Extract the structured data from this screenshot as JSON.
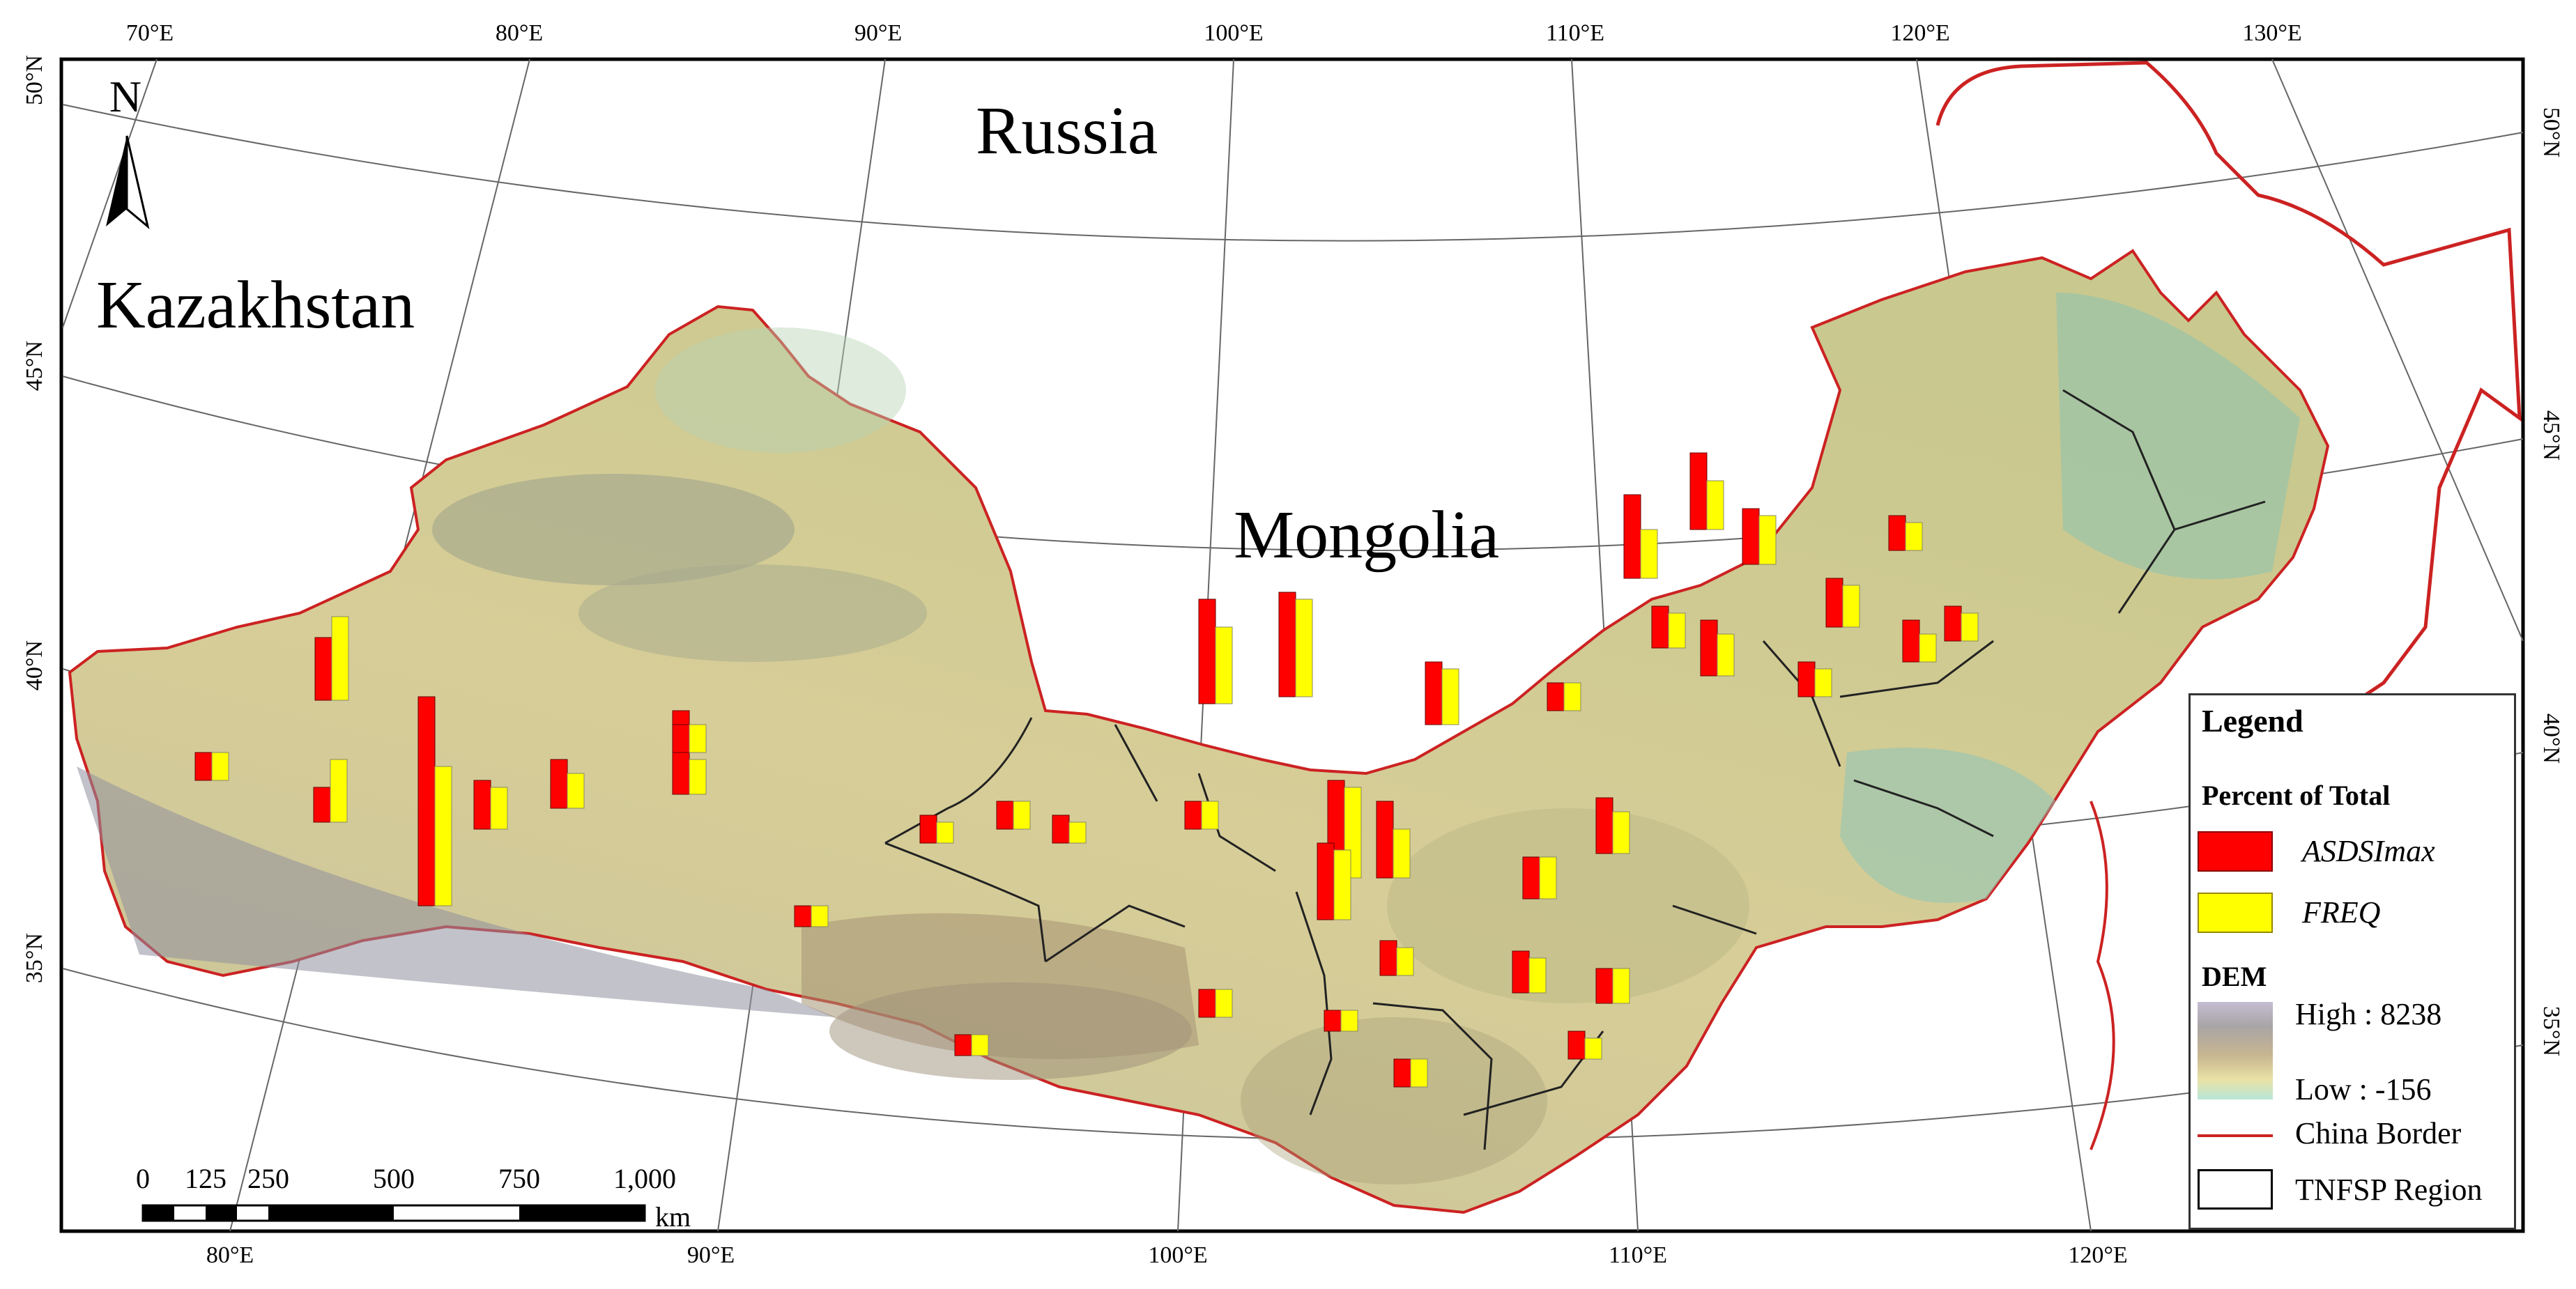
{
  "map": {
    "countries": {
      "russia": "Russia",
      "kazakhstan": "Kazakhstan",
      "mongolia": "Mongolia"
    },
    "north_arrow": "N",
    "top_ticks": [
      "70°E",
      "80°E",
      "90°E",
      "100°E",
      "110°E",
      "120°E",
      "130°E"
    ],
    "bottom_ticks": [
      "80°E",
      "90°E",
      "100°E",
      "110°E",
      "120°E"
    ],
    "left_ticks": [
      "50°N",
      "45°N",
      "40°N",
      "35°N"
    ],
    "right_ticks": [
      "50°N",
      "45°N",
      "40°N",
      "35°N"
    ],
    "scale_bar": {
      "labels": [
        "0",
        "125",
        "250",
        "500",
        "750",
        "1,000"
      ],
      "unit": "km"
    }
  },
  "legend": {
    "title": "Legend",
    "percent_heading": "Percent of Total",
    "series": [
      {
        "label": "ASDSImax",
        "color": "#ff0000"
      },
      {
        "label": "FREQ",
        "color": "#ffff00"
      }
    ],
    "dem_heading": "DEM",
    "dem_high": "High : 8238",
    "dem_low": "Low : -156",
    "china_border": "China Border",
    "tnfsp_region": "TNFSP Region",
    "china_border_color": "#cc2222"
  }
}
